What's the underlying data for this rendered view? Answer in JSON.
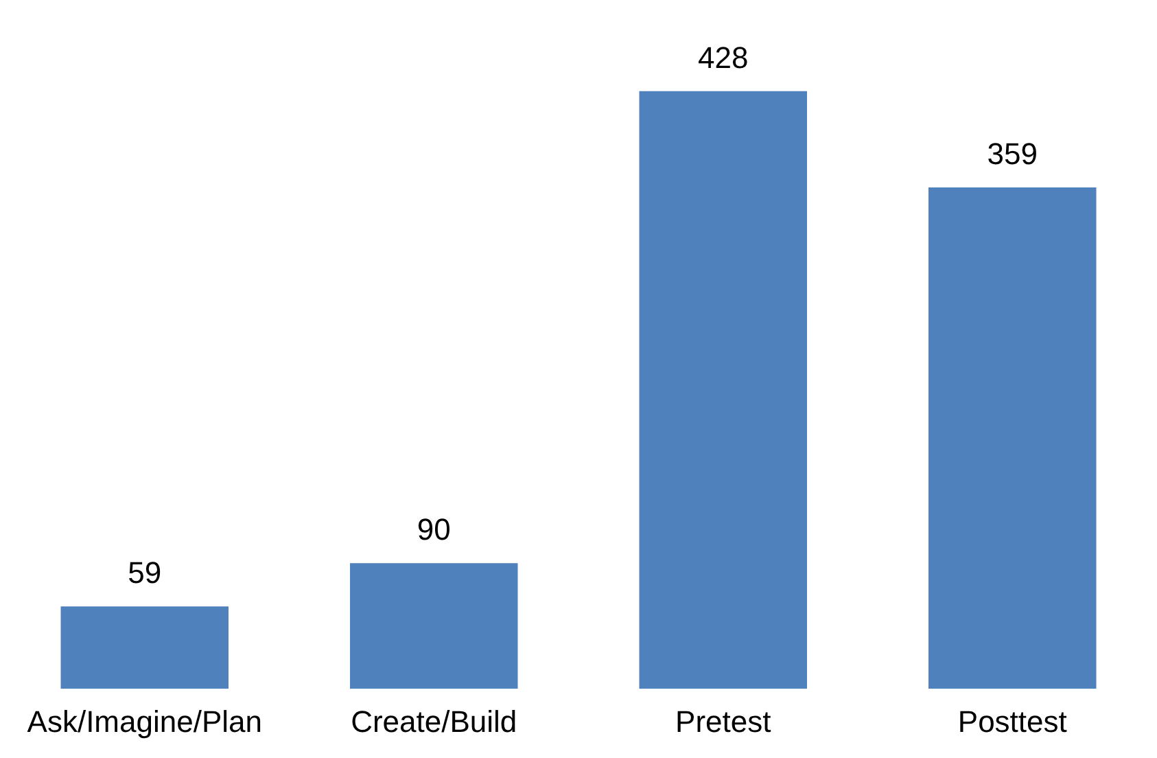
{
  "chart_data": {
    "type": "bar",
    "categories": [
      "Ask/Imagine/Plan",
      "Create/Build",
      "Pretest",
      "Posttest"
    ],
    "values": [
      59,
      90,
      428,
      359
    ],
    "color": "#4f81bd",
    "data_labels": true,
    "grid": false,
    "legend": false
  }
}
